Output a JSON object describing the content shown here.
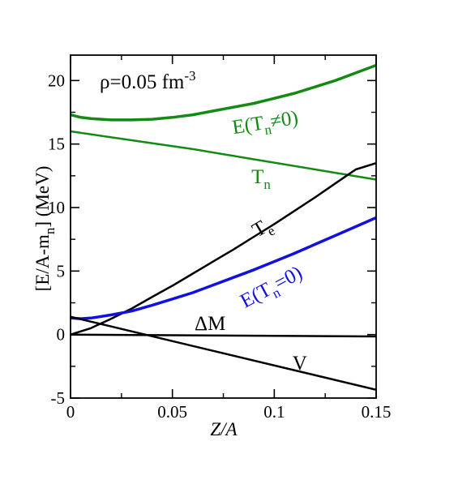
{
  "chart_data": {
    "type": "line",
    "xlabel": "Z/A",
    "ylabel": "[E/A-m",
    "ylabel_sub": "n",
    "ylabel_tail": "] (MeV)",
    "xlim": [
      0,
      0.15
    ],
    "ylim": [
      -5,
      22
    ],
    "x_ticks": [
      0,
      0.05,
      0.1,
      0.15
    ],
    "x_tick_labels": [
      "0",
      "0.05",
      "0.1",
      "0.15"
    ],
    "y_ticks": [
      -5,
      0,
      5,
      10,
      15,
      20
    ],
    "y_tick_labels": [
      "-5",
      "0",
      "5",
      "10",
      "15",
      "20"
    ],
    "grid": false,
    "annotation": {
      "main": "ρ=0.05 fm",
      "sup": "-3"
    },
    "series": [
      {
        "key": "e_tn_nonzero",
        "color": "#138a13",
        "width": 3.5,
        "label_main": "E(T",
        "label_sub": "n",
        "label_tail": "≠0)",
        "label_x": 0.096,
        "label_y": 16.2,
        "label_rotate": -9,
        "label_color": "#138a13",
        "x": [
          0,
          0.005,
          0.01,
          0.02,
          0.03,
          0.04,
          0.05,
          0.06,
          0.07,
          0.08,
          0.09,
          0.1,
          0.11,
          0.12,
          0.13,
          0.14,
          0.15
        ],
        "y": [
          17.3,
          17.1,
          17.0,
          16.9,
          16.9,
          16.95,
          17.1,
          17.3,
          17.6,
          17.9,
          18.2,
          18.6,
          19.0,
          19.5,
          20.0,
          20.6,
          21.2
        ]
      },
      {
        "key": "t_n",
        "color": "#138a13",
        "width": 2.5,
        "label_main": "T",
        "label_sub": "n",
        "label_tail": "",
        "label_x": 0.0935,
        "label_y": 11.9,
        "label_rotate": 0,
        "label_color": "#138a13",
        "x": [
          0,
          0.03,
          0.06,
          0.09,
          0.12,
          0.15
        ],
        "y": [
          16.0,
          15.3,
          14.6,
          13.8,
          13.0,
          12.2
        ]
      },
      {
        "key": "t_e",
        "color": "#000000",
        "width": 2.5,
        "label_main": "T",
        "label_sub": "e",
        "label_tail": "",
        "label_x": 0.0955,
        "label_y": 8.0,
        "label_rotate": -30,
        "label_color": "#000000",
        "x": [
          0,
          0.01,
          0.02,
          0.03,
          0.04,
          0.05,
          0.06,
          0.07,
          0.08,
          0.09,
          0.1,
          0.11,
          0.12,
          0.13,
          0.14,
          0.15
        ],
        "y": [
          0.0,
          0.5,
          1.25,
          2.05,
          2.95,
          3.85,
          4.8,
          5.75,
          6.7,
          7.7,
          8.7,
          9.75,
          10.8,
          11.9,
          13.0,
          13.5
        ]
      },
      {
        "key": "e_tn_zero",
        "color": "#1010e0",
        "width": 3.5,
        "label_main": "E(T",
        "label_sub": "n",
        "label_tail": "=0)",
        "label_x": 0.1,
        "label_y": 3.3,
        "label_rotate": -28,
        "label_color": "#1010e0",
        "x": [
          0,
          0.005,
          0.01,
          0.02,
          0.03,
          0.04,
          0.05,
          0.06,
          0.07,
          0.08,
          0.09,
          0.1,
          0.11,
          0.12,
          0.13,
          0.14,
          0.15
        ],
        "y": [
          1.3,
          1.25,
          1.3,
          1.55,
          1.85,
          2.3,
          2.8,
          3.3,
          3.9,
          4.5,
          5.1,
          5.75,
          6.4,
          7.1,
          7.8,
          8.5,
          9.2
        ]
      },
      {
        "key": "delta_m",
        "color": "#000000",
        "width": 2.5,
        "label_main": "ΔM",
        "label_sub": "",
        "label_tail": "",
        "label_x": 0.0685,
        "label_y": 0.35,
        "label_rotate": 0,
        "label_color": "#000000",
        "x": [
          0,
          0.15
        ],
        "y": [
          0.0,
          -0.15
        ]
      },
      {
        "key": "v",
        "color": "#000000",
        "width": 2.5,
        "label_main": "V",
        "label_sub": "",
        "label_tail": "",
        "label_x": 0.1125,
        "label_y": -2.75,
        "label_rotate": 0,
        "label_color": "#000000",
        "x": [
          0,
          0.15
        ],
        "y": [
          1.4,
          -4.35
        ]
      }
    ]
  }
}
